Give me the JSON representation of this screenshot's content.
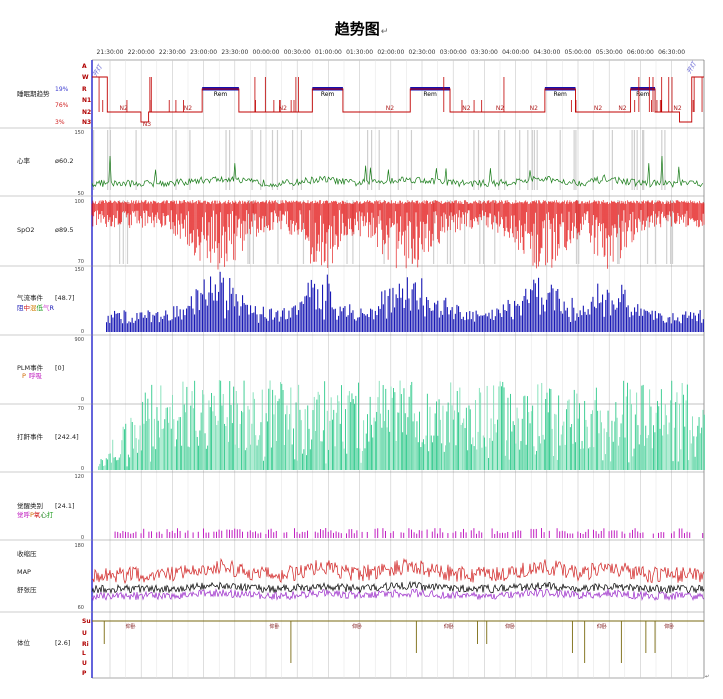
{
  "title": "趋势图",
  "title_mark": "↵",
  "end_mark": "↵",
  "time_ticks": [
    "21:30:00",
    "22:00:00",
    "22:30:00",
    "23:00:00",
    "23:30:00",
    "00:00:00",
    "00:30:00",
    "01:00:00",
    "01:30:00",
    "02:00:00",
    "02:30:00",
    "03:00:00",
    "03:30:00",
    "04:00:00",
    "04:30:00",
    "05:00:00",
    "05:30:00",
    "06:00:00",
    "06:30:00"
  ],
  "corner_labels": {
    "start": "开灯",
    "end": "开灯"
  },
  "colors": {
    "stage": "#c00000",
    "heart": "#1a7d1a",
    "spo2": "#e00000",
    "airflow": "#1a1ab5",
    "snore": "#2ec98a",
    "arousal": "#c020c0",
    "map": "#000000",
    "diastolic": "#9a2ac9",
    "position": "#7a6a10",
    "axis": "#3030d0",
    "grid": "#c8c8c8"
  },
  "chart_data": [
    {
      "panel": "sleep_stage",
      "type": "line",
      "title": "睡眠期趋势",
      "levels": [
        "A",
        "W",
        "R",
        "N1",
        "N2",
        "N3"
      ],
      "percentages": [
        {
          "text": "19%",
          "color": "#3b3bd0"
        },
        {
          "text": "76%",
          "color": "#d02020"
        },
        {
          "text": "3%",
          "color": "#d02020"
        }
      ],
      "rem_label": "Rem",
      "n2_label": "N2",
      "n3_label": "N3",
      "segments": [
        [
          0,
          0.5,
          "W"
        ],
        [
          0.5,
          1.6,
          "N2"
        ],
        [
          1.6,
          1.85,
          "N3"
        ],
        [
          1.85,
          3.6,
          "N2"
        ],
        [
          3.6,
          4.8,
          "R"
        ],
        [
          4.8,
          7.2,
          "N2"
        ],
        [
          7.2,
          8.2,
          "R"
        ],
        [
          8.2,
          10.4,
          "N2"
        ],
        [
          10.4,
          11.7,
          "R"
        ],
        [
          11.7,
          14.8,
          "N2"
        ],
        [
          14.8,
          15.8,
          "R"
        ],
        [
          15.8,
          17.6,
          "N2"
        ],
        [
          17.6,
          18.4,
          "R"
        ],
        [
          18.4,
          19.2,
          "N2"
        ],
        [
          19.2,
          19.6,
          "N3"
        ],
        [
          19.6,
          20,
          "W"
        ]
      ],
      "xlim": [
        0,
        20
      ]
    },
    {
      "panel": "heart_rate",
      "type": "line",
      "title": "心率",
      "summary": "ø60.2",
      "ylim": [
        50,
        150
      ],
      "mean": 60.2
    },
    {
      "panel": "spo2",
      "type": "line",
      "title": "SpO2",
      "summary": "ø89.5",
      "ylim": [
        70,
        100
      ],
      "mean": 89.5
    },
    {
      "panel": "airflow_events",
      "type": "bar",
      "title": "气流事件",
      "summary": "[48.7]",
      "legend": [
        "阻",
        "中",
        "混",
        "低",
        "气",
        "R"
      ],
      "legend_colors": [
        "#1a1ab5",
        "#d02020",
        "#d07a00",
        "#1a9a1a",
        "#d040d0",
        "#1a1ab5"
      ],
      "ylim": [
        0,
        150
      ]
    },
    {
      "panel": "plm_events",
      "type": "bar",
      "title": "PLM事件",
      "summary": "[0]",
      "legend": [
        "P",
        "呼吸"
      ],
      "legend_colors": [
        "#d06a00",
        "#c020c0"
      ],
      "ylim": [
        0,
        900
      ]
    },
    {
      "panel": "snore_events",
      "type": "bar",
      "title": "打鼾事件",
      "summary": "[242.4]",
      "ylim": [
        0,
        70
      ]
    },
    {
      "panel": "arousal_types",
      "type": "bar",
      "title": "觉醒类别",
      "summary": "[24.1]",
      "legend": [
        "觉",
        "呼",
        "P",
        "氧",
        "心",
        "打"
      ],
      "legend_colors": [
        "#c020c0",
        "#c020c0",
        "#d06a00",
        "#d02020",
        "#1a7d1a",
        "#1a9a1a"
      ],
      "ylim": [
        0,
        120
      ]
    },
    {
      "panel": "blood_pressure",
      "type": "line",
      "title": "",
      "series": [
        {
          "name": "收缩压",
          "color": "#d02020"
        },
        {
          "name": "MAP",
          "color": "#000000"
        },
        {
          "name": "舒张压",
          "color": "#9a2ac9"
        }
      ],
      "ylim": [
        60,
        180
      ]
    },
    {
      "panel": "body_position",
      "type": "line",
      "title": "体位",
      "summary": "[2.6]",
      "levels": [
        "Su",
        "U",
        "Ri",
        "L",
        "U",
        "P"
      ],
      "level_colors": [
        "#7a1010",
        "#7a1010",
        "#7a1010",
        "#1a9aa0",
        "#7a1010",
        "#7a1010"
      ],
      "annotation": "仰卧",
      "annotation_times": [
        1.1,
        5.8,
        8.5,
        11.5,
        13.5,
        16.5,
        18.7
      ]
    }
  ]
}
